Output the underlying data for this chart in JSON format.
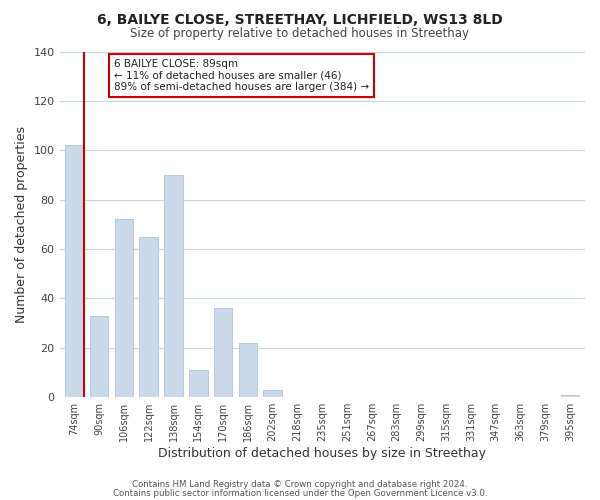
{
  "title": "6, BAILYE CLOSE, STREETHAY, LICHFIELD, WS13 8LD",
  "subtitle": "Size of property relative to detached houses in Streethay",
  "xlabel": "Distribution of detached houses by size in Streethay",
  "ylabel": "Number of detached properties",
  "bar_labels": [
    "74sqm",
    "90sqm",
    "106sqm",
    "122sqm",
    "138sqm",
    "154sqm",
    "170sqm",
    "186sqm",
    "202sqm",
    "218sqm",
    "235sqm",
    "251sqm",
    "267sqm",
    "283sqm",
    "299sqm",
    "315sqm",
    "331sqm",
    "347sqm",
    "363sqm",
    "379sqm",
    "395sqm"
  ],
  "bar_values": [
    102,
    33,
    72,
    65,
    90,
    11,
    36,
    22,
    3,
    0,
    0,
    0,
    0,
    0,
    0,
    0,
    0,
    0,
    0,
    0,
    1
  ],
  "bar_color": "#c9d9ea",
  "bar_edge_color": "#afc4d8",
  "vline_color": "#cc0000",
  "ylim": [
    0,
    140
  ],
  "yticks": [
    0,
    20,
    40,
    60,
    80,
    100,
    120,
    140
  ],
  "annotation_text": "6 BAILYE CLOSE: 89sqm\n← 11% of detached houses are smaller (46)\n89% of semi-detached houses are larger (384) →",
  "annotation_box_color": "#ffffff",
  "annotation_box_edge": "#cc0000",
  "footer1": "Contains HM Land Registry data © Crown copyright and database right 2024.",
  "footer2": "Contains public sector information licensed under the Open Government Licence v3.0.",
  "background_color": "#ffffff",
  "grid_color": "#c8d4e0"
}
